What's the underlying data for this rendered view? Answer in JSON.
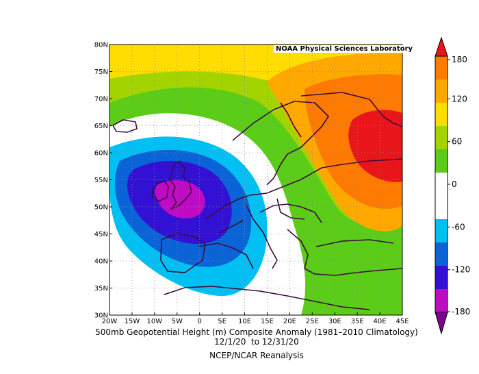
{
  "map": {
    "credit": "NOAA Physical Sciences Laboratory",
    "lat_ticks": [
      "30N",
      "35N",
      "40N",
      "45N",
      "50N",
      "55N",
      "60N",
      "65N",
      "70N",
      "75N",
      "80N"
    ],
    "lon_ticks": [
      "20W",
      "15W",
      "10W",
      "5W",
      "0",
      "5E",
      "10E",
      "15E",
      "20E",
      "25E",
      "30E",
      "35E",
      "40E",
      "45E"
    ],
    "lat_range": [
      30,
      80
    ],
    "lon_range": [
      -20,
      45
    ],
    "grid": true,
    "projection": "cylindrical"
  },
  "colorbar": {
    "ticks": [
      "180",
      "120",
      "60",
      "0",
      "-60",
      "-120",
      "-180"
    ],
    "colors": [
      "#e8151b",
      "#ff7a00",
      "#ffa800",
      "#ffdd00",
      "#a3d400",
      "#5bcc17",
      "#ffffff",
      "#ffffff",
      "#00bff2",
      "#0a64d8",
      "#3311d4",
      "#c00bc4",
      "#7d008f"
    ],
    "min": -180,
    "max": 180
  },
  "caption": {
    "line1": "500mb Geopotential Height (m) Composite Anomaly (1981–2010 Climatology)",
    "line2": "12/1/20  to 12/31/20",
    "line3": "NCEP/NCAR Reanalysis"
  },
  "chart_data": {
    "type": "heatmap",
    "variable": "500mb Geopotential Height (m) Composite Anomaly",
    "units": "m",
    "period": "12/1/20 to 12/31/20",
    "climatology": "1981–2010",
    "source": "NCEP/NCAR Reanalysis",
    "contour_levels": [
      -180,
      -150,
      -120,
      -90,
      -60,
      -30,
      0,
      30,
      60,
      90,
      120,
      150,
      180
    ],
    "features": [
      {
        "kind": "low",
        "lon": -4,
        "lat": 51,
        "value": -150
      },
      {
        "kind": "high",
        "lon": 43,
        "lat": 62,
        "value": 180
      }
    ]
  }
}
